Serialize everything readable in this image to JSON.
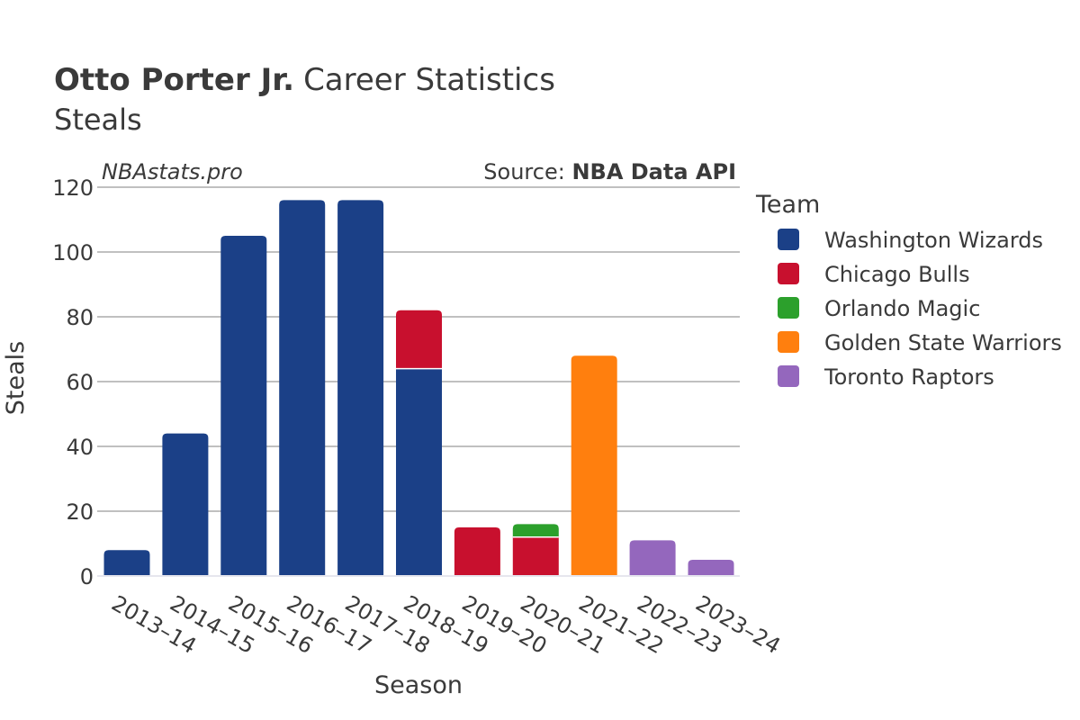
{
  "header": {
    "player_name": "Otto Porter Jr.",
    "title_rest": "Career Statistics",
    "subtitle": "Steals"
  },
  "watermark": "NBAstats.pro",
  "source": {
    "prefix": "Source: ",
    "name": "NBA Data API"
  },
  "legend": {
    "title": "Team"
  },
  "chart_data": {
    "type": "bar",
    "stacked": true,
    "xlabel": "Season",
    "ylabel": "Steals",
    "ylim": [
      0,
      120
    ],
    "yticks": [
      0,
      20,
      40,
      60,
      80,
      100,
      120
    ],
    "grid": true,
    "legend_position": "right",
    "categories": [
      "2013–14",
      "2014–15",
      "2015–16",
      "2016–17",
      "2017–18",
      "2018–19",
      "2019–20",
      "2020–21",
      "2021–22",
      "2022–23",
      "2023–24"
    ],
    "series": [
      {
        "name": "Washington Wizards",
        "color": "#1b4087",
        "values": [
          8,
          44,
          105,
          116,
          116,
          64,
          0,
          0,
          0,
          0,
          0
        ]
      },
      {
        "name": "Chicago Bulls",
        "color": "#c8102e",
        "values": [
          0,
          0,
          0,
          0,
          0,
          18,
          15,
          12,
          0,
          0,
          0
        ]
      },
      {
        "name": "Orlando Magic",
        "color": "#2ca02c",
        "values": [
          0,
          0,
          0,
          0,
          0,
          0,
          0,
          4,
          0,
          0,
          0
        ]
      },
      {
        "name": "Golden State Warriors",
        "color": "#ff7f0e",
        "values": [
          0,
          0,
          0,
          0,
          0,
          0,
          0,
          0,
          68,
          0,
          0
        ]
      },
      {
        "name": "Toronto Raptors",
        "color": "#9467bd",
        "values": [
          0,
          0,
          0,
          0,
          0,
          0,
          0,
          0,
          0,
          11,
          5
        ]
      }
    ]
  }
}
